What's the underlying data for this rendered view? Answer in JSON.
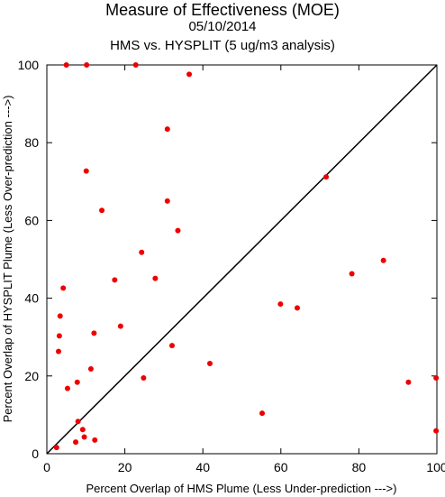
{
  "chart_data": {
    "type": "scatter",
    "title": "Measure of Effectiveness (MOE)",
    "subtitle": "05/10/2014",
    "subtitle2": "HMS vs. HYSPLIT  (5 ug/m3 analysis)",
    "xlabel": "Percent Overlap of HMS Plume (Less Under-prediction --->)",
    "ylabel": "Percent Overlap of HYSPLIT Plume (Less Over-prediction --->)",
    "xlim": [
      0,
      100
    ],
    "ylim": [
      0,
      100
    ],
    "x_ticks": [
      0,
      20,
      40,
      60,
      80,
      100
    ],
    "y_ticks": [
      0,
      20,
      40,
      60,
      80,
      100
    ],
    "x_tick_labels": [
      "0",
      "20",
      "40",
      "60",
      "80",
      "100"
    ],
    "y_tick_labels": [
      "0",
      "20",
      "40",
      "60",
      "80",
      "100"
    ],
    "grid": false,
    "reference_line": "y = x",
    "point_color": "#ee0000",
    "line_color": "#000000",
    "points": [
      {
        "x": 5.0,
        "y": 100
      },
      {
        "x": 10.2,
        "y": 100
      },
      {
        "x": 22.8,
        "y": 100
      },
      {
        "x": 36.5,
        "y": 97.6
      },
      {
        "x": 30.9,
        "y": 83.5
      },
      {
        "x": 10.1,
        "y": 72.7
      },
      {
        "x": 71.6,
        "y": 71.2
      },
      {
        "x": 30.9,
        "y": 65.0
      },
      {
        "x": 14.1,
        "y": 62.6
      },
      {
        "x": 33.6,
        "y": 57.4
      },
      {
        "x": 24.3,
        "y": 51.8
      },
      {
        "x": 86.3,
        "y": 49.7
      },
      {
        "x": 78.2,
        "y": 46.3
      },
      {
        "x": 27.8,
        "y": 45.1
      },
      {
        "x": 17.4,
        "y": 44.7
      },
      {
        "x": 4.2,
        "y": 42.6
      },
      {
        "x": 59.9,
        "y": 38.5
      },
      {
        "x": 64.2,
        "y": 37.5
      },
      {
        "x": 3.4,
        "y": 35.4
      },
      {
        "x": 18.9,
        "y": 32.8
      },
      {
        "x": 3.2,
        "y": 30.3
      },
      {
        "x": 12.1,
        "y": 31.0
      },
      {
        "x": 32.1,
        "y": 27.8
      },
      {
        "x": 3.0,
        "y": 26.3
      },
      {
        "x": 41.8,
        "y": 23.2
      },
      {
        "x": 11.3,
        "y": 21.8
      },
      {
        "x": 24.8,
        "y": 19.5
      },
      {
        "x": 99.8,
        "y": 19.5
      },
      {
        "x": 7.8,
        "y": 18.4
      },
      {
        "x": 92.7,
        "y": 18.4
      },
      {
        "x": 5.3,
        "y": 16.8
      },
      {
        "x": 55.2,
        "y": 10.4
      },
      {
        "x": 8.0,
        "y": 8.3
      },
      {
        "x": 9.2,
        "y": 6.2
      },
      {
        "x": 99.8,
        "y": 5.9
      },
      {
        "x": 9.6,
        "y": 4.3
      },
      {
        "x": 12.3,
        "y": 3.5
      },
      {
        "x": 7.4,
        "y": 3.0
      },
      {
        "x": 2.5,
        "y": 1.6
      }
    ]
  }
}
